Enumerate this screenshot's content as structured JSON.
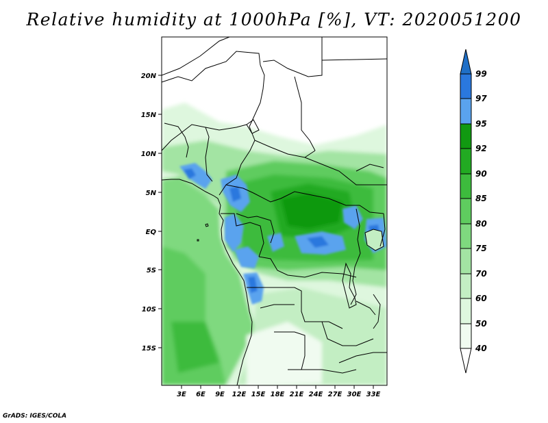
{
  "title": "Relative humidity at 1000hPa [%], VT: 2020051200",
  "credit": "GrADS: IGES/COLA",
  "map": {
    "lat_labels": [
      "20N",
      "15N",
      "10N",
      "5N",
      "EQ",
      "5S",
      "10S",
      "15S"
    ],
    "lon_labels": [
      "3E",
      "6E",
      "9E",
      "12E",
      "15E",
      "18E",
      "21E",
      "24E",
      "27E",
      "30E",
      "33E"
    ]
  },
  "colorbar": {
    "labels": [
      "99",
      "97",
      "95",
      "92",
      "90",
      "85",
      "80",
      "75",
      "70",
      "60",
      "50",
      "40"
    ],
    "colors": {
      "above_99": "#1f6fc7",
      "97_99": "#2a78de",
      "95_97": "#5aa3ee",
      "92_95": "#119911",
      "90_92": "#22aa22",
      "85_90": "#3dbb3d",
      "80_85": "#5fcc5f",
      "75_80": "#7fd97f",
      "70_75": "#a3e4a3",
      "60_70": "#c3eec3",
      "50_60": "#def7de",
      "40_50": "#f0fbf0",
      "below_40": "#ffffff"
    }
  }
}
